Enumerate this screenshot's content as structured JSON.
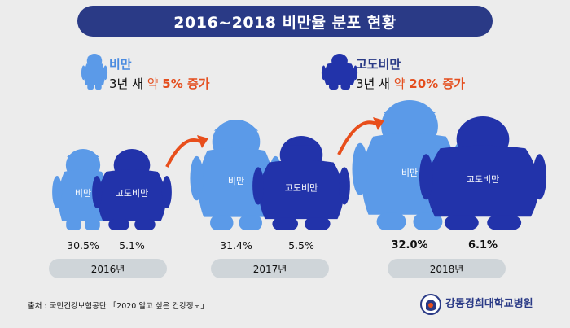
{
  "title": "2016~2018 비만율 분포 현황",
  "legend": {
    "obese": {
      "label": "비만",
      "desc_prefix": "3년 새 ",
      "desc_keyword": "약 ",
      "desc_value": "5% 증가",
      "color": "#5b9ae8"
    },
    "severe": {
      "label": "고도비만",
      "desc_prefix": "3년 새 ",
      "desc_keyword": "약 ",
      "desc_value": "20% 증가",
      "color": "#2233aa"
    }
  },
  "figure_labels": {
    "obese": "비만",
    "severe": "고도비만"
  },
  "accent_color": "#e84e1b",
  "chart_data": {
    "type": "bar",
    "categories": [
      "2016년",
      "2017년",
      "2018년"
    ],
    "series": [
      {
        "name": "비만",
        "values": [
          30.5,
          31.4,
          32.0
        ],
        "value_labels": [
          "30.5%",
          "31.4%",
          "32.0%"
        ]
      },
      {
        "name": "고도비만",
        "values": [
          5.1,
          5.5,
          6.1
        ],
        "value_labels": [
          "5.1%",
          "5.5%",
          "6.1%"
        ]
      }
    ]
  },
  "source": "출처 : 국민건강보험공단 「2020 알고 싶은 건강정보」",
  "brand": "강동경희대학교병원"
}
